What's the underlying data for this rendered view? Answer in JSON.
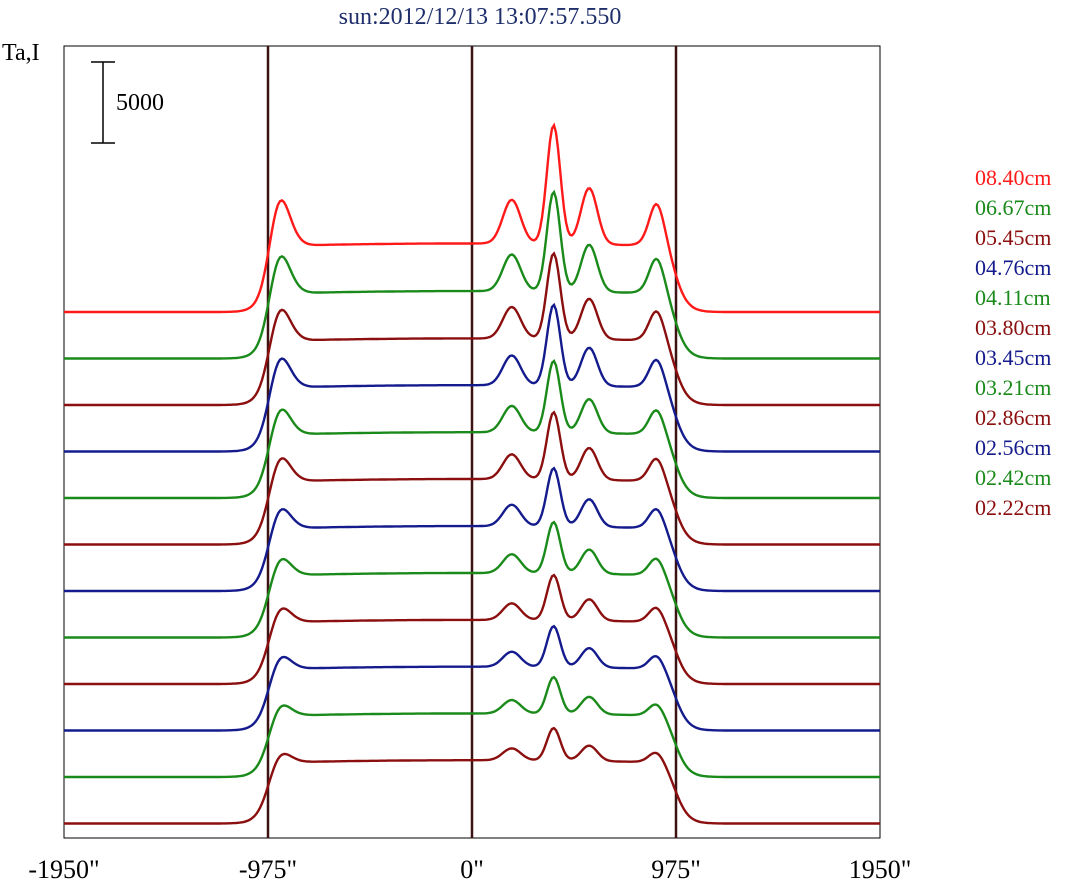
{
  "chart_data": {
    "type": "line",
    "title": "sun:2012/12/13 13:07:57.550",
    "ylabel": "Ta,I",
    "scale_bar_label": "5000",
    "scale_bar_value": 5000,
    "x_tick_labels": [
      "-1950\"",
      "-975\"",
      "0\"",
      "975\"",
      "1950\""
    ],
    "x_ticks": [
      -1950,
      -975,
      0,
      975,
      1950
    ],
    "xlim": [
      -1950,
      1950
    ],
    "vertical_lines": [
      -975,
      0,
      975
    ],
    "grid": false,
    "legend_position": "right",
    "colors": {
      "red": "#ff1a1a",
      "green": "#1a8a1a",
      "maroon": "#8b0f0f",
      "blue": "#141b8c",
      "frame": "#000000",
      "vline": "#3d1212"
    },
    "series": [
      {
        "name": "08.40cm",
        "color": "#ff1a1a",
        "baseline": 0,
        "amp": 1.35
      },
      {
        "name": "06.67cm",
        "color": "#1a8a1a",
        "baseline": 0,
        "amp": 1.15
      },
      {
        "name": "05.45cm",
        "color": "#8b0f0f",
        "baseline": 0,
        "amp": 1.0
      },
      {
        "name": "04.76cm",
        "color": "#141b8c",
        "baseline": 0,
        "amp": 0.95
      },
      {
        "name": "04.11cm",
        "color": "#1a8a1a",
        "baseline": 0,
        "amp": 0.85
      },
      {
        "name": "03.80cm",
        "color": "#8b0f0f",
        "baseline": 0,
        "amp": 0.8
      },
      {
        "name": "03.45cm",
        "color": "#141b8c",
        "baseline": 0,
        "amp": 0.7
      },
      {
        "name": "03.21cm",
        "color": "#1a8a1a",
        "baseline": 0,
        "amp": 0.62
      },
      {
        "name": "02.86cm",
        "color": "#8b0f0f",
        "baseline": 0,
        "amp": 0.55
      },
      {
        "name": "02.56cm",
        "color": "#141b8c",
        "baseline": 0,
        "amp": 0.5
      },
      {
        "name": "02.42cm",
        "color": "#1a8a1a",
        "baseline": 0,
        "amp": 0.45
      },
      {
        "name": "02.22cm",
        "color": "#8b0f0f",
        "baseline": 0,
        "amp": 0.4
      }
    ]
  }
}
